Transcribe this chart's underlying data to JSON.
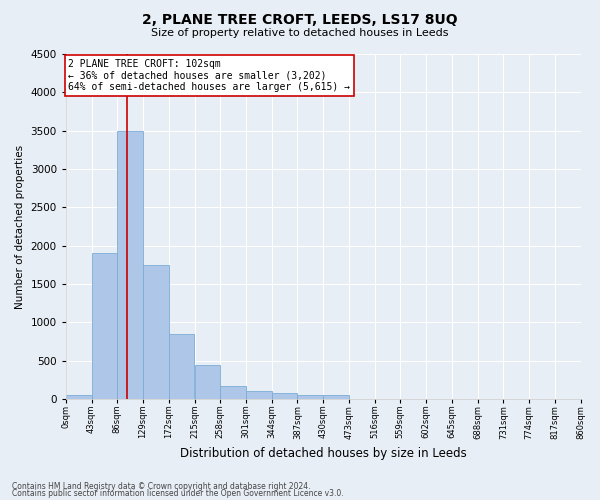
{
  "title": "2, PLANE TREE CROFT, LEEDS, LS17 8UQ",
  "subtitle": "Size of property relative to detached houses in Leeds",
  "xlabel": "Distribution of detached houses by size in Leeds",
  "ylabel": "Number of detached properties",
  "bin_labels": [
    "0sqm",
    "43sqm",
    "86sqm",
    "129sqm",
    "172sqm",
    "215sqm",
    "258sqm",
    "301sqm",
    "344sqm",
    "387sqm",
    "430sqm",
    "473sqm",
    "516sqm",
    "559sqm",
    "602sqm",
    "645sqm",
    "688sqm",
    "731sqm",
    "774sqm",
    "817sqm",
    "860sqm"
  ],
  "bar_values": [
    50,
    1900,
    3500,
    1750,
    850,
    450,
    165,
    100,
    75,
    50,
    50,
    0,
    0,
    0,
    0,
    0,
    0,
    0,
    0,
    0
  ],
  "bar_color": "#aec6e8",
  "bar_edge_color": "#7aadd4",
  "property_line_x": 102,
  "bin_width": 43,
  "ylim": [
    0,
    4500
  ],
  "yticks": [
    0,
    500,
    1000,
    1500,
    2000,
    2500,
    3000,
    3500,
    4000,
    4500
  ],
  "annotation_title": "2 PLANE TREE CROFT: 102sqm",
  "annotation_line1": "← 36% of detached houses are smaller (3,202)",
  "annotation_line2": "64% of semi-detached houses are larger (5,615) →",
  "annotation_box_color": "#ffffff",
  "annotation_box_edge": "#cc0000",
  "vline_color": "#cc0000",
  "footer1": "Contains HM Land Registry data © Crown copyright and database right 2024.",
  "footer2": "Contains public sector information licensed under the Open Government Licence v3.0.",
  "bg_color": "#e8eef5",
  "plot_bg_color": "#e8eef5",
  "grid_color": "#ffffff",
  "title_fontsize": 10,
  "subtitle_fontsize": 8,
  "xlabel_fontsize": 8.5,
  "ylabel_fontsize": 7.5,
  "ytick_fontsize": 7.5,
  "xtick_fontsize": 6,
  "footer_fontsize": 5.5,
  "ann_fontsize": 7
}
